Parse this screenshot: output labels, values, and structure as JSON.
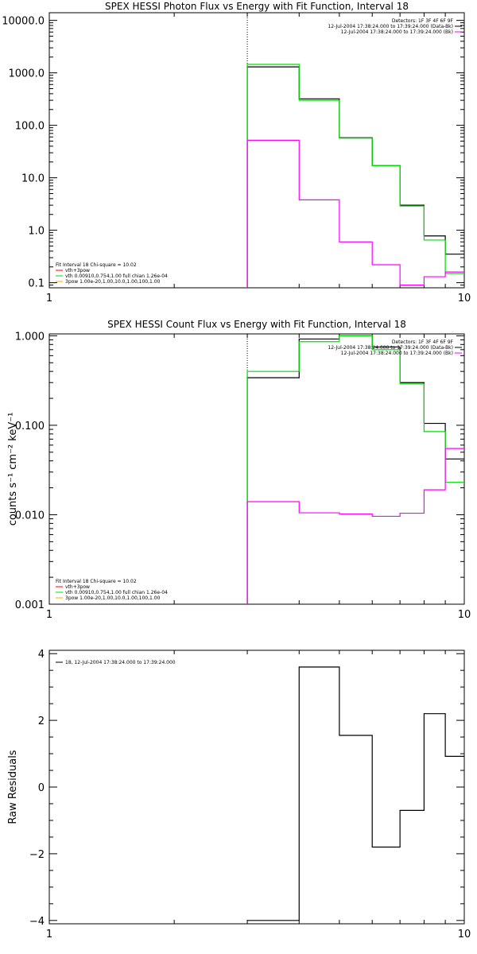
{
  "colors": {
    "data": "#000000",
    "total": "#00dd00",
    "component": "#ff00ff",
    "background": "#ffffff"
  },
  "chart_data": [
    {
      "type": "line",
      "title": "SPEX HESSI Photon Flux vs Energy with Fit Function, Interval 18",
      "xlabel": "",
      "ylabel": "",
      "xscale": "log",
      "yscale": "log",
      "xlim": [
        1,
        10
      ],
      "ylim": [
        0.08,
        14000
      ],
      "xticks": [
        {
          "v": 1,
          "label": "1"
        },
        {
          "v": 10,
          "label": "10"
        }
      ],
      "yticks": [
        {
          "v": 0.1,
          "label": "0.1"
        },
        {
          "v": 1,
          "label": "1.0"
        },
        {
          "v": 10,
          "label": "10.0"
        },
        {
          "v": 100,
          "label": "100.0"
        },
        {
          "v": 1000,
          "label": "1000.0"
        },
        {
          "v": 10000,
          "label": "10000.0"
        }
      ],
      "fit_start": 3.0,
      "bin_edges": [
        3.0,
        4.0,
        5.0,
        6.0,
        7.0,
        8.0,
        9.0,
        10.0
      ],
      "series": [
        {
          "key": "data",
          "values": [
            1300,
            320,
            58,
            17,
            3.0,
            0.78,
            0.35
          ]
        },
        {
          "key": "total",
          "values": [
            1450,
            300,
            57,
            17,
            2.9,
            0.65,
            0.15
          ]
        },
        {
          "key": "component",
          "values": [
            52,
            3.8,
            0.6,
            0.22,
            0.09,
            0.13,
            0.16
          ]
        }
      ],
      "legend_right": [
        {
          "text": "Detectors: 1F 3F 4F 6F 9F",
          "color": "#000000"
        },
        {
          "text": "12-Jul-2004 17:38:24.000 to 17:39:24.000 (Data-Bk)",
          "color": "#000000"
        },
        {
          "text": "12-Jul-2004 17:38:24.000 to 17:39:24.000 (Bk)",
          "color": "#ff00ff"
        }
      ],
      "legend_left": [
        {
          "text": "Fit Interval 18   Chi-square = 10.02",
          "color": ""
        },
        {
          "text": "vth+3pow",
          "color": "#ff0000"
        },
        {
          "text": "vth 0.00910,0.754,1.00  full chian 1.26e-04",
          "color": "#00dd00"
        },
        {
          "text": "3pow 1.00e-20,1.00,10.0,1.00,100,1.00",
          "color": "#ffaa00"
        }
      ]
    },
    {
      "type": "line",
      "title": "SPEX HESSI Count Flux vs Energy with Fit Function, Interval 18",
      "xlabel": "",
      "ylabel": "counts s⁻¹ cm⁻² keV⁻¹",
      "xscale": "log",
      "yscale": "log",
      "xlim": [
        1,
        10
      ],
      "ylim": [
        0.001,
        1.05
      ],
      "xticks": [
        {
          "v": 1,
          "label": "1"
        },
        {
          "v": 10,
          "label": "10"
        }
      ],
      "yticks": [
        {
          "v": 0.001,
          "label": "0.001"
        },
        {
          "v": 0.01,
          "label": "0.010"
        },
        {
          "v": 0.1,
          "label": "0.100"
        },
        {
          "v": 1,
          "label": "1.000"
        }
      ],
      "fit_start": 3.0,
      "bin_edges": [
        3.0,
        4.0,
        5.0,
        6.0,
        7.0,
        8.0,
        9.0,
        10.0
      ],
      "series": [
        {
          "key": "data",
          "values": [
            0.34,
            0.92,
            1.0,
            0.75,
            0.3,
            0.105,
            0.042
          ]
        },
        {
          "key": "total",
          "values": [
            0.4,
            0.86,
            1.0,
            0.7,
            0.29,
            0.085,
            0.023
          ]
        },
        {
          "key": "component",
          "values": [
            0.014,
            0.0105,
            0.0102,
            0.0096,
            0.0104,
            0.019,
            0.055
          ]
        }
      ],
      "legend_right": [
        {
          "text": "Detectors: 1F 3F 4F 6F 9F",
          "color": "#000000"
        },
        {
          "text": "12-Jul-2004 17:38:24.000 to 17:39:24.000 (Data-Bk)",
          "color": "#000000"
        },
        {
          "text": "12-Jul-2004 17:38:24.000 to 17:39:24.000 (Bk)",
          "color": "#ff00ff"
        }
      ],
      "legend_left": [
        {
          "text": "Fit Interval 18   Chi-square = 10.02",
          "color": ""
        },
        {
          "text": "vth+3pow",
          "color": "#ff0000"
        },
        {
          "text": "vth 0.00910,0.754,1.00  full chian 1.26e-04",
          "color": "#00dd00"
        },
        {
          "text": "3pow 1.00e-20,1.00,10.0,1.00,100,1.00",
          "color": "#ffaa00"
        }
      ]
    },
    {
      "type": "line",
      "title": "",
      "xlabel": "",
      "ylabel": "Raw Residuals",
      "xscale": "log",
      "yscale": "linear",
      "xlim": [
        1,
        10
      ],
      "ylim": [
        -4.1,
        4.1
      ],
      "xticks": [
        {
          "v": 1,
          "label": "1"
        },
        {
          "v": 10,
          "label": "10"
        }
      ],
      "yticks": [
        {
          "v": -4,
          "label": "−4"
        },
        {
          "v": -2,
          "label": "−2"
        },
        {
          "v": 0,
          "label": "0"
        },
        {
          "v": 2,
          "label": "2"
        },
        {
          "v": 4,
          "label": "4"
        }
      ],
      "bin_edges": [
        3.0,
        4.0,
        5.0,
        6.0,
        7.0,
        8.0,
        9.0,
        10.0
      ],
      "series": [
        {
          "key": "data",
          "values": [
            -4.0,
            3.6,
            1.55,
            -1.8,
            -0.7,
            2.2,
            0.92
          ]
        }
      ],
      "legend_left": [
        {
          "text": "18, 12-Jul-2004 17:38:24.000 to 17:39:24.000",
          "color": "#000000"
        }
      ]
    }
  ]
}
